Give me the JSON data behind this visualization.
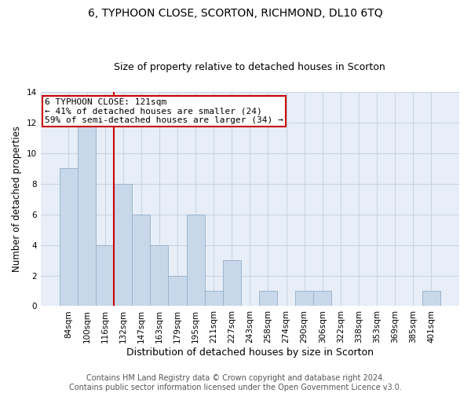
{
  "title": "6, TYPHOON CLOSE, SCORTON, RICHMOND, DL10 6TQ",
  "subtitle": "Size of property relative to detached houses in Scorton",
  "xlabel": "Distribution of detached houses by size in Scorton",
  "ylabel": "Number of detached properties",
  "categories": [
    "84sqm",
    "100sqm",
    "116sqm",
    "132sqm",
    "147sqm",
    "163sqm",
    "179sqm",
    "195sqm",
    "211sqm",
    "227sqm",
    "243sqm",
    "258sqm",
    "274sqm",
    "290sqm",
    "306sqm",
    "322sqm",
    "338sqm",
    "353sqm",
    "369sqm",
    "385sqm",
    "401sqm"
  ],
  "values": [
    9,
    12,
    4,
    8,
    6,
    4,
    2,
    6,
    1,
    3,
    0,
    1,
    0,
    1,
    1,
    0,
    0,
    0,
    0,
    0,
    1
  ],
  "bar_color": "#c8d8ea",
  "bar_edge_color": "#9ab4cc",
  "bar_linewidth": 0.7,
  "vline_color": "#cc0000",
  "vline_x_index": 2.5,
  "annotation_line1": "6 TYPHOON CLOSE: 121sqm",
  "annotation_line2": "← 41% of detached houses are smaller (24)",
  "annotation_line3": "59% of semi-detached houses are larger (34) →",
  "annotation_box_facecolor": "white",
  "annotation_box_edgecolor": "#cc0000",
  "ylim": [
    0,
    14
  ],
  "yticks": [
    0,
    2,
    4,
    6,
    8,
    10,
    12,
    14
  ],
  "grid_color": "#c8d4e4",
  "background_color": "#e8eef8",
  "footer_text": "Contains HM Land Registry data © Crown copyright and database right 2024.\nContains public sector information licensed under the Open Government Licence v3.0.",
  "title_fontsize": 10,
  "subtitle_fontsize": 9,
  "xlabel_fontsize": 9,
  "ylabel_fontsize": 8.5,
  "tick_fontsize": 7.5,
  "annotation_fontsize": 8,
  "footer_fontsize": 7
}
